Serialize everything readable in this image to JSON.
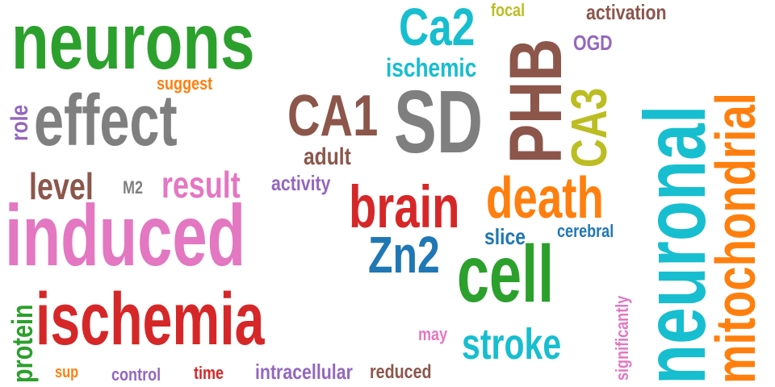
{
  "colors": {
    "green": "#2ca02c",
    "gray": "#7f7f7f",
    "pink": "#e377c2",
    "red": "#d62728",
    "cyan": "#17becf",
    "brown": "#8c564b",
    "orange": "#ff7f0e",
    "olive": "#bcbd22",
    "blue": "#1f77b4",
    "purple": "#9467bd"
  },
  "words": [
    {
      "text": "neurons",
      "color": "green"
    },
    {
      "text": "effect",
      "color": "gray"
    },
    {
      "text": "induced",
      "color": "pink"
    },
    {
      "text": "ischemia",
      "color": "red"
    },
    {
      "text": "SD",
      "color": "gray"
    },
    {
      "text": "PHB",
      "color": "brown"
    },
    {
      "text": "neuronal",
      "color": "cyan"
    },
    {
      "text": "mitochondrial",
      "color": "orange"
    },
    {
      "text": "cell",
      "color": "green"
    },
    {
      "text": "CA1",
      "color": "brown"
    },
    {
      "text": "CA3",
      "color": "olive"
    },
    {
      "text": "Ca2",
      "color": "cyan"
    },
    {
      "text": "brain",
      "color": "red"
    },
    {
      "text": "death",
      "color": "orange"
    },
    {
      "text": "Zn2",
      "color": "blue"
    },
    {
      "text": "stroke",
      "color": "cyan"
    },
    {
      "text": "result",
      "color": "pink"
    },
    {
      "text": "level",
      "color": "brown"
    },
    {
      "text": "adult",
      "color": "brown"
    },
    {
      "text": "ischemic",
      "color": "cyan"
    },
    {
      "text": "activation",
      "color": "brown"
    },
    {
      "text": "focal",
      "color": "olive"
    },
    {
      "text": "OGD",
      "color": "purple"
    },
    {
      "text": "suggest",
      "color": "orange"
    },
    {
      "text": "role",
      "color": "purple"
    },
    {
      "text": "activity",
      "color": "purple"
    },
    {
      "text": "M2",
      "color": "gray"
    },
    {
      "text": "slice",
      "color": "blue"
    },
    {
      "text": "cerebral",
      "color": "blue"
    },
    {
      "text": "protein",
      "color": "green"
    },
    {
      "text": "sup",
      "color": "orange"
    },
    {
      "text": "control",
      "color": "purple"
    },
    {
      "text": "time",
      "color": "red"
    },
    {
      "text": "intracellular",
      "color": "purple"
    },
    {
      "text": "reduced",
      "color": "brown"
    },
    {
      "text": "may",
      "color": "pink"
    },
    {
      "text": "significantly",
      "color": "pink"
    }
  ]
}
